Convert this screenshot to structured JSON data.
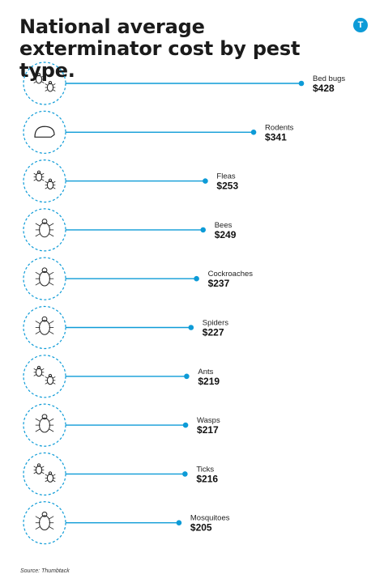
{
  "title": "National average exterminator cost by pest type.",
  "brand": {
    "logo_letter": "T",
    "color": "#0d9bd7"
  },
  "source": "Source: Thumbtack",
  "colors": {
    "accent": "#0d9bd7",
    "circle_border": "#0d9bd7"
  },
  "chart_data": {
    "type": "bar",
    "title": "National average exterminator cost by pest type.",
    "orientation": "horizontal",
    "style": "lollipop",
    "unit": "$",
    "categories": [
      "Bed bugs",
      "Rodents",
      "Fleas",
      "Bees",
      "Cockroaches",
      "Spiders",
      "Ants",
      "Wasps",
      "Ticks",
      "Mosquitoes"
    ],
    "values": [
      428,
      341,
      253,
      249,
      237,
      227,
      219,
      217,
      216,
      205
    ],
    "value_labels": [
      "$428",
      "$341",
      "$253",
      "$249",
      "$237",
      "$227",
      "$219",
      "$217",
      "$216",
      "$205"
    ],
    "icons": [
      "bed-bug-icon",
      "rodent-icon",
      "flea-icon",
      "bee-icon",
      "cockroach-icon",
      "spider-icon",
      "ant-icon",
      "wasp-icon",
      "tick-icon",
      "mosquito-icon"
    ],
    "xlabel": "",
    "ylabel": "",
    "grid": false,
    "legend": "none"
  }
}
